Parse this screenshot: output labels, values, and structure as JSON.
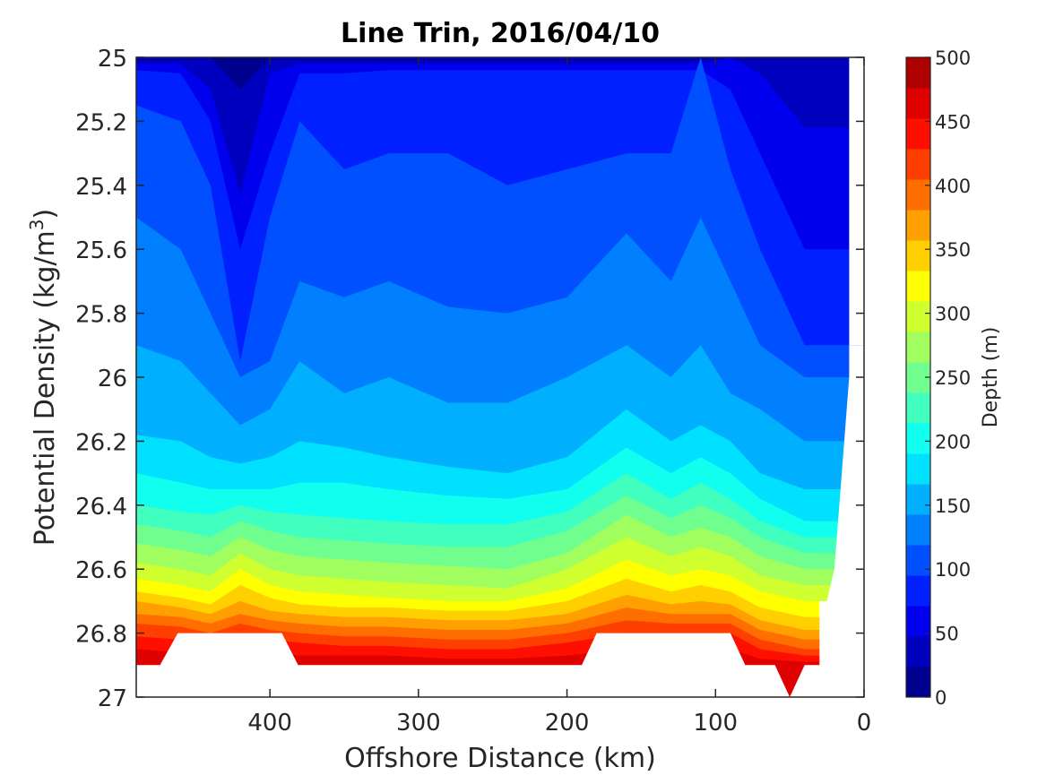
{
  "chart_data": {
    "type": "contour",
    "title": "Line Trin, 2016/04/10",
    "xlabel": "Offshore Distance (km)",
    "ylabel": "Potential Density (kg/m",
    "ylabel_sup": "3",
    "ylabel_close": ")",
    "x_axis": {
      "range": [
        490,
        0
      ],
      "reversed": true,
      "ticks": [
        400,
        300,
        200,
        100,
        0
      ],
      "tick_labels": [
        "400",
        "300",
        "200",
        "100",
        "0"
      ]
    },
    "y_axis": {
      "range": [
        25,
        27
      ],
      "reversed": true,
      "ticks": [
        25,
        25.2,
        25.4,
        25.6,
        25.8,
        26,
        26.2,
        26.4,
        26.6,
        26.8,
        27
      ],
      "tick_labels": [
        "25",
        "25.2",
        "25.4",
        "25.6",
        "25.8",
        "26",
        "26.2",
        "26.4",
        "26.6",
        "26.8",
        "27"
      ]
    },
    "colorbar": {
      "label": "Depth (m)",
      "range": [
        0,
        500
      ],
      "ticks": [
        0,
        50,
        100,
        150,
        200,
        250,
        300,
        350,
        400,
        450,
        500
      ],
      "tick_labels": [
        "0",
        "50",
        "100",
        "150",
        "200",
        "250",
        "300",
        "350",
        "400",
        "450",
        "500"
      ],
      "levels": [
        0,
        25,
        50,
        75,
        100,
        125,
        150,
        175,
        200,
        225,
        250,
        275,
        300,
        325,
        350,
        375,
        400,
        425,
        450,
        475,
        500
      ],
      "colors": [
        "#00008f",
        "#0000bf",
        "#0000ef",
        "#0020ff",
        "#0050ff",
        "#0080ff",
        "#00b0ff",
        "#00e0ff",
        "#10ffef",
        "#40ffbf",
        "#70ff8f",
        "#a0ff5f",
        "#d0ff2f",
        "#ffff00",
        "#ffcf00",
        "#ff9f00",
        "#ff6f00",
        "#ff3f00",
        "#ff0f00",
        "#df0000",
        "#af0000"
      ]
    },
    "contours": [
      {
        "level": 25,
        "x": [
          490,
          460,
          440,
          420,
          400,
          380,
          350,
          320,
          280,
          240,
          200,
          160,
          130,
          110,
          90,
          70,
          40,
          10
        ],
        "y": [
          25.0,
          25.0,
          25.0,
          25.1,
          25.0,
          25.0,
          25.0,
          25.0,
          25.0,
          25.0,
          25.0,
          25.0,
          25.0,
          25.0,
          25.0,
          25.0,
          25.0,
          25.0
        ]
      },
      {
        "level": 50,
        "x": [
          490,
          460,
          440,
          420,
          400,
          380,
          350,
          320,
          280,
          240,
          200,
          160,
          130,
          110,
          90,
          70,
          40,
          10
        ],
        "y": [
          25.02,
          25.02,
          25.1,
          25.43,
          25.05,
          25.02,
          25.02,
          25.02,
          25.02,
          25.02,
          25.02,
          25.02,
          25.02,
          25.02,
          25.0,
          25.05,
          25.22,
          25.22
        ]
      },
      {
        "level": 75,
        "x": [
          490,
          460,
          440,
          420,
          400,
          380,
          350,
          320,
          280,
          240,
          200,
          160,
          130,
          110,
          90,
          70,
          40,
          10
        ],
        "y": [
          25.04,
          25.05,
          25.2,
          25.6,
          25.3,
          25.05,
          25.05,
          25.04,
          25.04,
          25.04,
          25.04,
          25.04,
          25.04,
          25.04,
          25.1,
          25.3,
          25.6,
          25.6
        ]
      },
      {
        "level": 100,
        "x": [
          490,
          460,
          440,
          420,
          400,
          380,
          350,
          320,
          280,
          240,
          200,
          160,
          130,
          110,
          90,
          70,
          40,
          10
        ],
        "y": [
          25.15,
          25.2,
          25.4,
          25.95,
          25.5,
          25.2,
          25.35,
          25.3,
          25.3,
          25.4,
          25.35,
          25.3,
          25.3,
          25.0,
          25.35,
          25.6,
          25.9,
          25.9
        ]
      },
      {
        "level": 125,
        "x": [
          490,
          460,
          440,
          420,
          400,
          380,
          350,
          320,
          280,
          240,
          200,
          160,
          130,
          110,
          90,
          70,
          40,
          20
        ],
        "y": [
          25.5,
          25.6,
          25.8,
          26.0,
          25.95,
          25.7,
          25.75,
          25.7,
          25.78,
          25.8,
          25.75,
          25.55,
          25.7,
          25.5,
          25.7,
          25.9,
          26.0,
          26.0
        ]
      },
      {
        "level": 150,
        "x": [
          490,
          460,
          440,
          420,
          400,
          380,
          350,
          320,
          280,
          240,
          200,
          160,
          130,
          110,
          90,
          70,
          40,
          20
        ],
        "y": [
          25.9,
          25.95,
          26.05,
          26.15,
          26.1,
          25.95,
          26.05,
          26.0,
          26.08,
          26.08,
          26.0,
          25.9,
          26.0,
          25.9,
          26.05,
          26.1,
          26.2,
          26.2
        ]
      },
      {
        "level": 175,
        "x": [
          490,
          460,
          440,
          420,
          400,
          380,
          350,
          320,
          280,
          240,
          200,
          160,
          130,
          110,
          90,
          70,
          40,
          20
        ],
        "y": [
          26.18,
          26.2,
          26.25,
          26.27,
          26.25,
          26.2,
          26.22,
          26.25,
          26.28,
          26.3,
          26.25,
          26.1,
          26.2,
          26.15,
          26.2,
          26.3,
          26.35,
          26.35
        ]
      },
      {
        "level": 200,
        "x": [
          490,
          460,
          440,
          420,
          400,
          380,
          350,
          320,
          280,
          240,
          200,
          160,
          130,
          110,
          90,
          70,
          40,
          20
        ],
        "y": [
          26.3,
          26.33,
          26.35,
          26.35,
          26.35,
          26.33,
          26.33,
          26.35,
          26.37,
          26.38,
          26.35,
          26.22,
          26.3,
          26.25,
          26.3,
          26.38,
          26.45,
          26.45
        ]
      },
      {
        "level": 225,
        "x": [
          490,
          460,
          440,
          420,
          400,
          380,
          350,
          320,
          280,
          240,
          200,
          160,
          130,
          110,
          90,
          70,
          40,
          20
        ],
        "y": [
          26.4,
          26.42,
          26.43,
          26.4,
          26.42,
          26.43,
          26.44,
          26.45,
          26.46,
          26.46,
          26.42,
          26.3,
          26.38,
          26.33,
          26.38,
          26.45,
          26.5,
          26.5
        ]
      },
      {
        "level": 250,
        "x": [
          490,
          460,
          440,
          420,
          400,
          380,
          350,
          320,
          280,
          240,
          200,
          160,
          130,
          110,
          90,
          70,
          40,
          20
        ],
        "y": [
          26.46,
          26.48,
          26.5,
          26.45,
          26.48,
          26.5,
          26.51,
          26.52,
          26.53,
          26.53,
          26.48,
          26.37,
          26.44,
          26.4,
          26.44,
          26.5,
          26.55,
          26.55
        ]
      },
      {
        "level": 275,
        "x": [
          490,
          460,
          440,
          420,
          400,
          380,
          350,
          320,
          280,
          240,
          200,
          160,
          130,
          110,
          90,
          70,
          40,
          20
        ],
        "y": [
          26.52,
          26.54,
          26.56,
          26.5,
          26.54,
          26.56,
          26.57,
          26.58,
          26.59,
          26.6,
          26.55,
          26.43,
          26.5,
          26.47,
          26.5,
          26.56,
          26.6,
          26.6
        ]
      },
      {
        "level": 300,
        "x": [
          490,
          460,
          440,
          420,
          400,
          380,
          350,
          320,
          280,
          240,
          200,
          160,
          130,
          110,
          90,
          70,
          40,
          20
        ],
        "y": [
          26.58,
          26.6,
          26.62,
          26.55,
          26.6,
          26.62,
          26.63,
          26.64,
          26.65,
          26.66,
          26.6,
          26.5,
          26.56,
          26.53,
          26.56,
          26.62,
          26.65,
          26.65
        ]
      },
      {
        "level": 325,
        "x": [
          490,
          460,
          440,
          420,
          400,
          380,
          350,
          320,
          280,
          240,
          200,
          160,
          130,
          110,
          90,
          70,
          40,
          25
        ],
        "y": [
          26.63,
          26.65,
          26.67,
          26.6,
          26.65,
          26.67,
          26.68,
          26.69,
          26.7,
          26.7,
          26.66,
          26.57,
          26.62,
          26.6,
          26.62,
          26.67,
          26.7,
          26.7
        ]
      },
      {
        "level": 350,
        "x": [
          490,
          460,
          440,
          420,
          400,
          380,
          350,
          320,
          280,
          240,
          200,
          160,
          130,
          110,
          90,
          70,
          40,
          25
        ],
        "y": [
          26.67,
          26.69,
          26.71,
          26.65,
          26.69,
          26.71,
          26.72,
          26.72,
          26.73,
          26.73,
          26.7,
          26.63,
          26.67,
          26.65,
          26.67,
          26.72,
          26.75,
          26.75
        ]
      },
      {
        "level": 375,
        "x": [
          490,
          460,
          440,
          420,
          400,
          380,
          350,
          320,
          280,
          240,
          200,
          160,
          130,
          110,
          90,
          70,
          40,
          25
        ],
        "y": [
          26.7,
          26.72,
          26.74,
          26.7,
          26.73,
          26.74,
          26.75,
          26.75,
          26.76,
          26.76,
          26.74,
          26.68,
          26.71,
          26.7,
          26.71,
          26.76,
          26.79,
          26.79
        ]
      },
      {
        "level": 400,
        "x": [
          490,
          460,
          440,
          420,
          400,
          380,
          350,
          320,
          280,
          240,
          200,
          160,
          130,
          110,
          90,
          70,
          40,
          25
        ],
        "y": [
          26.74,
          26.75,
          26.77,
          26.74,
          26.76,
          26.77,
          26.78,
          26.78,
          26.79,
          26.79,
          26.77,
          26.72,
          26.74,
          26.74,
          26.74,
          26.79,
          26.82,
          26.82
        ]
      },
      {
        "level": 425,
        "x": [
          490,
          460,
          440,
          420,
          400,
          380,
          350,
          320,
          280,
          240,
          200,
          160,
          130,
          110,
          90,
          70,
          40,
          25
        ],
        "y": [
          26.77,
          26.78,
          26.8,
          26.77,
          26.79,
          26.8,
          26.81,
          26.81,
          26.82,
          26.82,
          26.8,
          26.76,
          26.77,
          26.77,
          26.77,
          26.82,
          26.85,
          26.85
        ]
      },
      {
        "level": 450,
        "x": [
          490,
          460,
          440,
          420,
          400,
          380,
          350,
          320,
          280,
          240,
          200,
          160,
          130,
          110,
          90,
          70,
          40,
          25
        ],
        "y": [
          26.81,
          26.82,
          26.83,
          26.8,
          26.82,
          26.83,
          26.84,
          26.84,
          26.85,
          26.85,
          26.83,
          26.8,
          26.8,
          26.8,
          26.8,
          26.85,
          26.87,
          26.87
        ]
      },
      {
        "level": 475,
        "x": [
          490,
          460,
          440,
          420,
          400,
          380,
          350,
          320,
          280,
          240,
          200,
          160,
          130,
          110,
          90,
          70,
          40,
          25
        ],
        "y": [
          26.85,
          26.86,
          26.87,
          26.85,
          26.86,
          26.87,
          26.87,
          26.87,
          26.88,
          26.88,
          26.87,
          26.85,
          26.85,
          26.85,
          26.85,
          26.88,
          26.89,
          26.89
        ]
      }
    ],
    "no_data_regions": [
      {
        "x": [
          490,
          474,
          474,
          462,
          392,
          381,
          381,
          190,
          190,
          180,
          90,
          80,
          80,
          60,
          50,
          40,
          30,
          30,
          25,
          20,
          20,
          10,
          10,
          0,
          0,
          490
        ],
        "y": [
          26.9,
          26.9,
          26.9,
          26.8,
          26.8,
          26.9,
          26.9,
          26.9,
          26.9,
          26.8,
          26.8,
          26.9,
          26.9,
          26.9,
          27.0,
          26.9,
          26.9,
          26.7,
          26.7,
          26.6,
          26.6,
          26.0,
          25.9,
          25.9,
          27.0,
          27.0
        ]
      },
      {
        "x": [
          10,
          0,
          0,
          10
        ],
        "y": [
          25.0,
          25.0,
          25.9,
          25.9
        ]
      }
    ]
  }
}
